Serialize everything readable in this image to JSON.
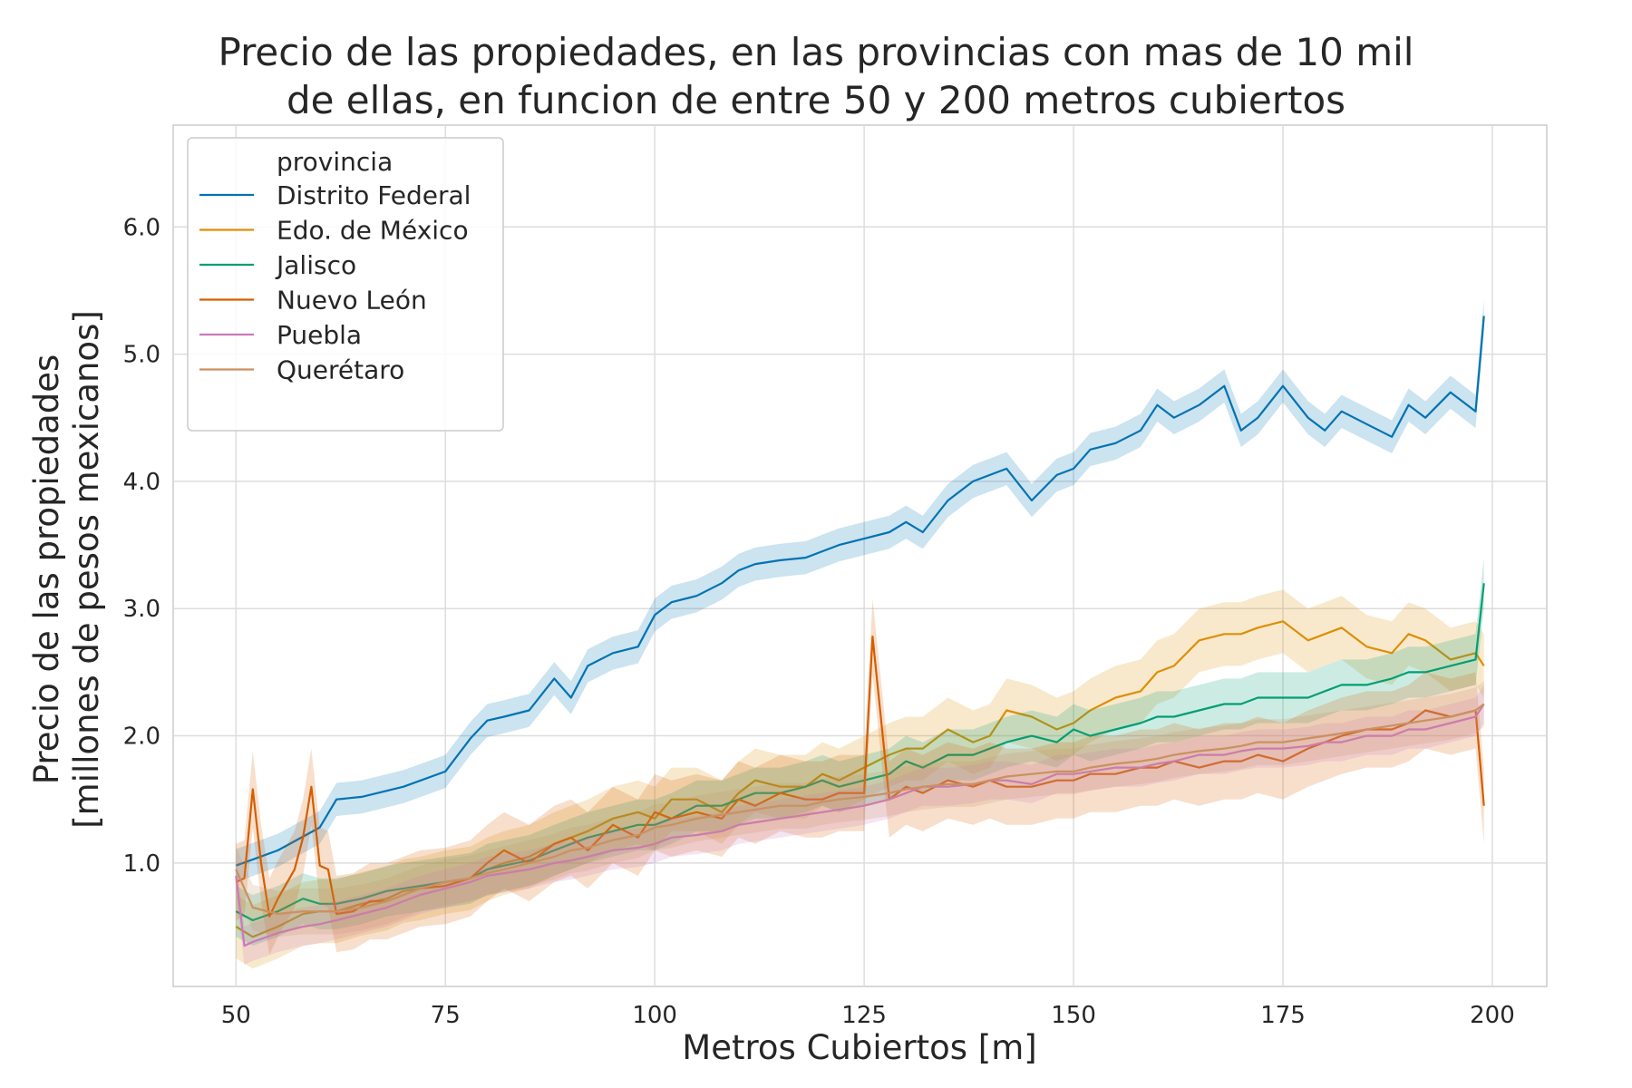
{
  "chart_data": {
    "type": "line",
    "title": "Precio de las propiedades, en las provincias con mas de 10 mil de ellas, en funcion de entre 50 y 200 metros cubiertos",
    "title_lines": [
      "Precio de las propiedades, en las provincias con mas de 10 mil",
      "de ellas, en funcion de entre 50 y 200 metros cubiertos"
    ],
    "xlabel": "Metros Cubiertos [m]",
    "ylabel_lines": [
      "Precio de las propiedades",
      "[millones de pesos mexicanos]"
    ],
    "xlim": [
      42.5,
      206.5
    ],
    "ylim": [
      0.03,
      6.8
    ],
    "x_ticks": [
      50,
      75,
      100,
      125,
      150,
      175,
      200
    ],
    "x_tick_labels": [
      "50",
      "75",
      "100",
      "125",
      "150",
      "175",
      "200"
    ],
    "y_ticks": [
      1.0,
      2.0,
      3.0,
      4.0,
      5.0,
      6.0
    ],
    "y_tick_labels": [
      "1.0",
      "2.0",
      "3.0",
      "4.0",
      "5.0",
      "6.0"
    ],
    "grid": true,
    "legend_title": "provincia",
    "legend_position": "top-left",
    "series": [
      {
        "name": "Distrito Federal",
        "color": "#0173b2",
        "x": [
          50,
          55,
          60,
          62,
          65,
          70,
          75,
          78,
          80,
          82,
          85,
          88,
          90,
          92,
          95,
          98,
          100,
          102,
          105,
          108,
          110,
          112,
          115,
          118,
          120,
          122,
          125,
          128,
          130,
          132,
          135,
          138,
          140,
          142,
          145,
          148,
          150,
          152,
          155,
          158,
          160,
          162,
          165,
          168,
          170,
          172,
          175,
          178,
          180,
          182,
          185,
          188,
          190,
          192,
          195,
          198,
          199
        ],
        "values": [
          0.98,
          1.1,
          1.28,
          1.5,
          1.52,
          1.6,
          1.72,
          1.98,
          2.12,
          2.15,
          2.2,
          2.45,
          2.3,
          2.55,
          2.65,
          2.7,
          2.95,
          3.05,
          3.1,
          3.2,
          3.3,
          3.35,
          3.38,
          3.4,
          3.45,
          3.5,
          3.55,
          3.6,
          3.68,
          3.6,
          3.85,
          4.0,
          4.05,
          4.1,
          3.85,
          4.05,
          4.1,
          4.25,
          4.3,
          4.4,
          4.6,
          4.5,
          4.6,
          4.75,
          4.4,
          4.5,
          4.75,
          4.5,
          4.4,
          4.55,
          4.45,
          4.35,
          4.6,
          4.5,
          4.7,
          4.55,
          5.3
        ],
        "band": 0.13
      },
      {
        "name": "Edo. de México",
        "color": "#de8f05",
        "x": [
          50,
          52,
          55,
          58,
          60,
          62,
          65,
          68,
          70,
          72,
          75,
          78,
          80,
          82,
          85,
          88,
          90,
          92,
          95,
          98,
          100,
          102,
          105,
          108,
          110,
          112,
          115,
          118,
          120,
          122,
          125,
          128,
          130,
          132,
          135,
          138,
          140,
          142,
          145,
          148,
          150,
          152,
          155,
          158,
          160,
          162,
          165,
          168,
          170,
          172,
          175,
          178,
          180,
          182,
          185,
          188,
          190,
          192,
          195,
          198,
          199
        ],
        "values": [
          0.5,
          0.42,
          0.5,
          0.6,
          0.62,
          0.62,
          0.68,
          0.72,
          0.78,
          0.8,
          0.85,
          0.88,
          0.95,
          1.0,
          1.05,
          1.15,
          1.2,
          1.25,
          1.35,
          1.4,
          1.35,
          1.5,
          1.5,
          1.4,
          1.55,
          1.65,
          1.6,
          1.6,
          1.7,
          1.65,
          1.75,
          1.85,
          1.9,
          1.9,
          2.05,
          1.95,
          2.0,
          2.2,
          2.15,
          2.05,
          2.1,
          2.2,
          2.3,
          2.35,
          2.5,
          2.55,
          2.75,
          2.8,
          2.8,
          2.85,
          2.9,
          2.75,
          2.8,
          2.85,
          2.7,
          2.65,
          2.8,
          2.75,
          2.6,
          2.65,
          2.55
        ],
        "band": 0.25
      },
      {
        "name": "Jalisco",
        "color": "#029e73",
        "x": [
          50,
          52,
          55,
          58,
          60,
          62,
          65,
          68,
          70,
          72,
          75,
          78,
          80,
          82,
          85,
          88,
          90,
          92,
          95,
          98,
          100,
          102,
          105,
          108,
          110,
          112,
          115,
          118,
          120,
          122,
          125,
          128,
          130,
          132,
          135,
          138,
          140,
          142,
          145,
          148,
          150,
          152,
          155,
          158,
          160,
          162,
          165,
          168,
          170,
          172,
          175,
          178,
          180,
          182,
          185,
          188,
          190,
          192,
          195,
          198,
          199
        ],
        "values": [
          0.62,
          0.55,
          0.62,
          0.72,
          0.68,
          0.68,
          0.72,
          0.78,
          0.8,
          0.82,
          0.85,
          0.88,
          0.95,
          0.98,
          1.02,
          1.1,
          1.15,
          1.2,
          1.25,
          1.3,
          1.3,
          1.35,
          1.45,
          1.45,
          1.5,
          1.55,
          1.55,
          1.6,
          1.65,
          1.6,
          1.65,
          1.7,
          1.8,
          1.75,
          1.85,
          1.85,
          1.9,
          1.95,
          2.0,
          1.95,
          2.05,
          2.0,
          2.05,
          2.1,
          2.15,
          2.15,
          2.2,
          2.25,
          2.25,
          2.3,
          2.3,
          2.3,
          2.35,
          2.4,
          2.4,
          2.45,
          2.5,
          2.5,
          2.55,
          2.6,
          3.2
        ],
        "band": 0.2
      },
      {
        "name": "Nuevo León",
        "color": "#d55e00",
        "x": [
          50,
          51,
          52,
          53,
          54,
          55,
          57,
          58,
          59,
          60,
          61,
          62,
          64,
          66,
          68,
          70,
          72,
          75,
          78,
          80,
          82,
          85,
          88,
          90,
          92,
          95,
          98,
          100,
          102,
          105,
          108,
          110,
          112,
          115,
          118,
          120,
          122,
          125,
          126,
          128,
          130,
          132,
          135,
          138,
          140,
          142,
          145,
          148,
          150,
          152,
          155,
          158,
          160,
          162,
          165,
          168,
          170,
          172,
          175,
          178,
          180,
          182,
          185,
          188,
          190,
          192,
          195,
          198,
          199
        ],
        "values": [
          0.85,
          0.88,
          1.58,
          1.0,
          0.58,
          0.72,
          0.95,
          1.2,
          1.6,
          0.98,
          0.95,
          0.6,
          0.62,
          0.7,
          0.7,
          0.75,
          0.8,
          0.82,
          0.88,
          1.0,
          1.1,
          1.0,
          1.15,
          1.2,
          1.1,
          1.3,
          1.2,
          1.4,
          1.35,
          1.4,
          1.35,
          1.5,
          1.45,
          1.55,
          1.5,
          1.5,
          1.55,
          1.55,
          2.78,
          1.5,
          1.6,
          1.55,
          1.65,
          1.6,
          1.65,
          1.6,
          1.6,
          1.65,
          1.65,
          1.7,
          1.7,
          1.75,
          1.75,
          1.8,
          1.75,
          1.8,
          1.8,
          1.85,
          1.8,
          1.9,
          1.95,
          2.0,
          2.05,
          2.05,
          2.1,
          2.2,
          2.15,
          2.2,
          1.45
        ],
        "band": 0.3
      },
      {
        "name": "Puebla",
        "color": "#cc78bc",
        "x": [
          50,
          51,
          52,
          55,
          58,
          60,
          62,
          65,
          68,
          70,
          72,
          75,
          78,
          80,
          82,
          85,
          88,
          90,
          92,
          95,
          98,
          100,
          102,
          105,
          108,
          110,
          112,
          115,
          118,
          120,
          122,
          125,
          128,
          130,
          132,
          135,
          138,
          140,
          142,
          145,
          148,
          150,
          152,
          155,
          158,
          160,
          162,
          165,
          168,
          170,
          172,
          175,
          178,
          180,
          182,
          185,
          188,
          190,
          192,
          195,
          198,
          199
        ],
        "values": [
          0.9,
          0.35,
          0.38,
          0.45,
          0.5,
          0.52,
          0.55,
          0.6,
          0.65,
          0.7,
          0.75,
          0.8,
          0.85,
          0.9,
          0.92,
          0.95,
          1.0,
          1.02,
          1.05,
          1.1,
          1.12,
          1.15,
          1.2,
          1.22,
          1.25,
          1.3,
          1.32,
          1.35,
          1.38,
          1.4,
          1.42,
          1.45,
          1.5,
          1.55,
          1.6,
          1.6,
          1.62,
          1.65,
          1.65,
          1.62,
          1.7,
          1.7,
          1.72,
          1.75,
          1.75,
          1.78,
          1.8,
          1.85,
          1.85,
          1.88,
          1.9,
          1.9,
          1.92,
          1.95,
          1.95,
          2.0,
          2.0,
          2.05,
          2.05,
          2.1,
          2.15,
          2.25
        ],
        "band": 0.15
      },
      {
        "name": "Querétaro",
        "color": "#ca9161",
        "x": [
          50,
          52,
          55,
          58,
          60,
          62,
          65,
          68,
          70,
          72,
          75,
          78,
          80,
          82,
          85,
          88,
          90,
          92,
          95,
          98,
          100,
          102,
          105,
          108,
          110,
          112,
          115,
          118,
          120,
          122,
          125,
          128,
          130,
          132,
          135,
          138,
          140,
          142,
          145,
          148,
          150,
          152,
          155,
          158,
          160,
          162,
          165,
          168,
          170,
          172,
          175,
          178,
          180,
          182,
          185,
          188,
          190,
          192,
          195,
          198,
          199
        ],
        "values": [
          0.95,
          0.65,
          0.6,
          0.62,
          0.62,
          0.62,
          0.65,
          0.7,
          0.75,
          0.8,
          0.85,
          0.88,
          0.92,
          0.95,
          1.0,
          1.05,
          1.1,
          1.12,
          1.18,
          1.22,
          1.28,
          1.3,
          1.35,
          1.38,
          1.4,
          1.42,
          1.45,
          1.45,
          1.48,
          1.5,
          1.52,
          1.55,
          1.58,
          1.6,
          1.62,
          1.62,
          1.65,
          1.68,
          1.7,
          1.72,
          1.72,
          1.75,
          1.78,
          1.8,
          1.82,
          1.85,
          1.88,
          1.9,
          1.92,
          1.95,
          1.95,
          1.98,
          2.0,
          2.02,
          2.05,
          2.08,
          2.1,
          2.12,
          2.15,
          2.2,
          2.25
        ],
        "band": 0.18
      }
    ]
  }
}
